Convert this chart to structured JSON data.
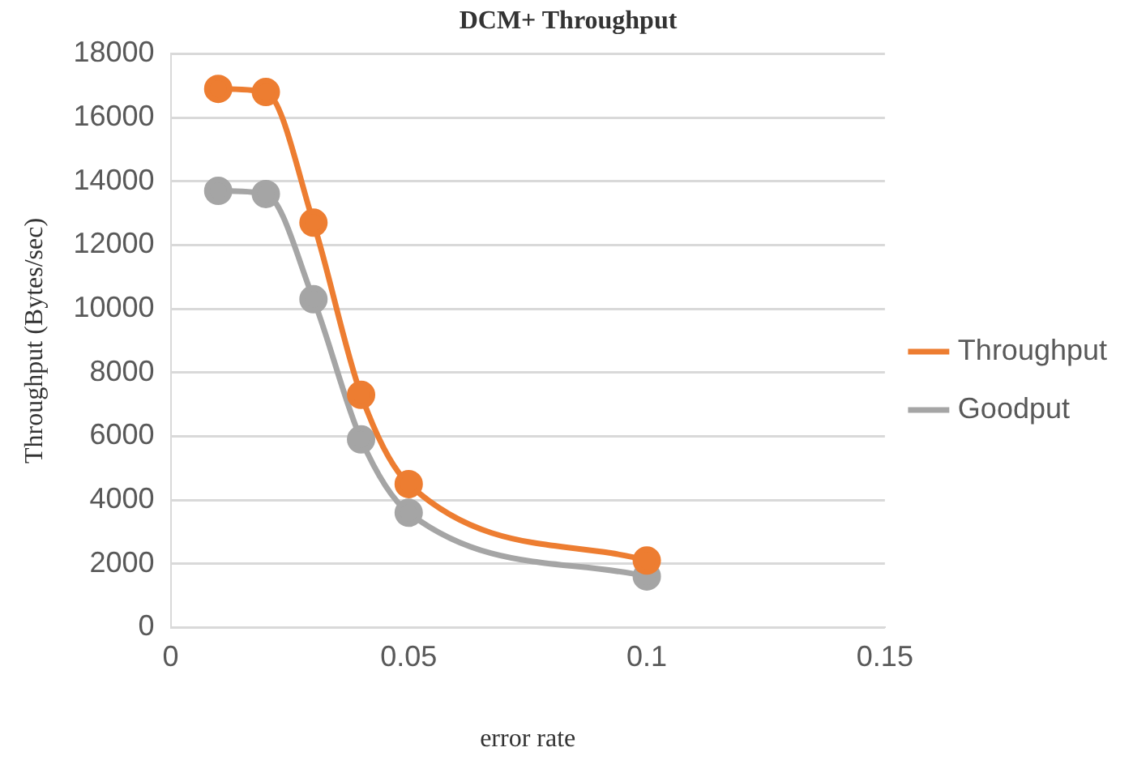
{
  "chart_data": {
    "type": "line",
    "title": "DCM+ Throughput",
    "xlabel": "error rate",
    "ylabel": "Throughput (Bytes/sec)",
    "x": [
      0.01,
      0.02,
      0.03,
      0.04,
      0.05,
      0.1
    ],
    "series": [
      {
        "name": "Throughput",
        "color": "#ed7d31",
        "values": [
          16900,
          16800,
          12700,
          7300,
          4500,
          2100
        ]
      },
      {
        "name": "Goodput",
        "color": "#a5a5a5",
        "values": [
          13700,
          13600,
          10300,
          5900,
          3600,
          1600
        ]
      }
    ],
    "xlim": [
      0,
      0.15
    ],
    "xticks": [
      0,
      0.05,
      0.1,
      0.15
    ],
    "ylim": [
      0,
      18000
    ],
    "yticks": [
      0,
      2000,
      4000,
      6000,
      8000,
      10000,
      12000,
      14000,
      16000,
      18000
    ],
    "grid": "y",
    "legend": "right",
    "marker": "circle",
    "line_style": "solid"
  }
}
